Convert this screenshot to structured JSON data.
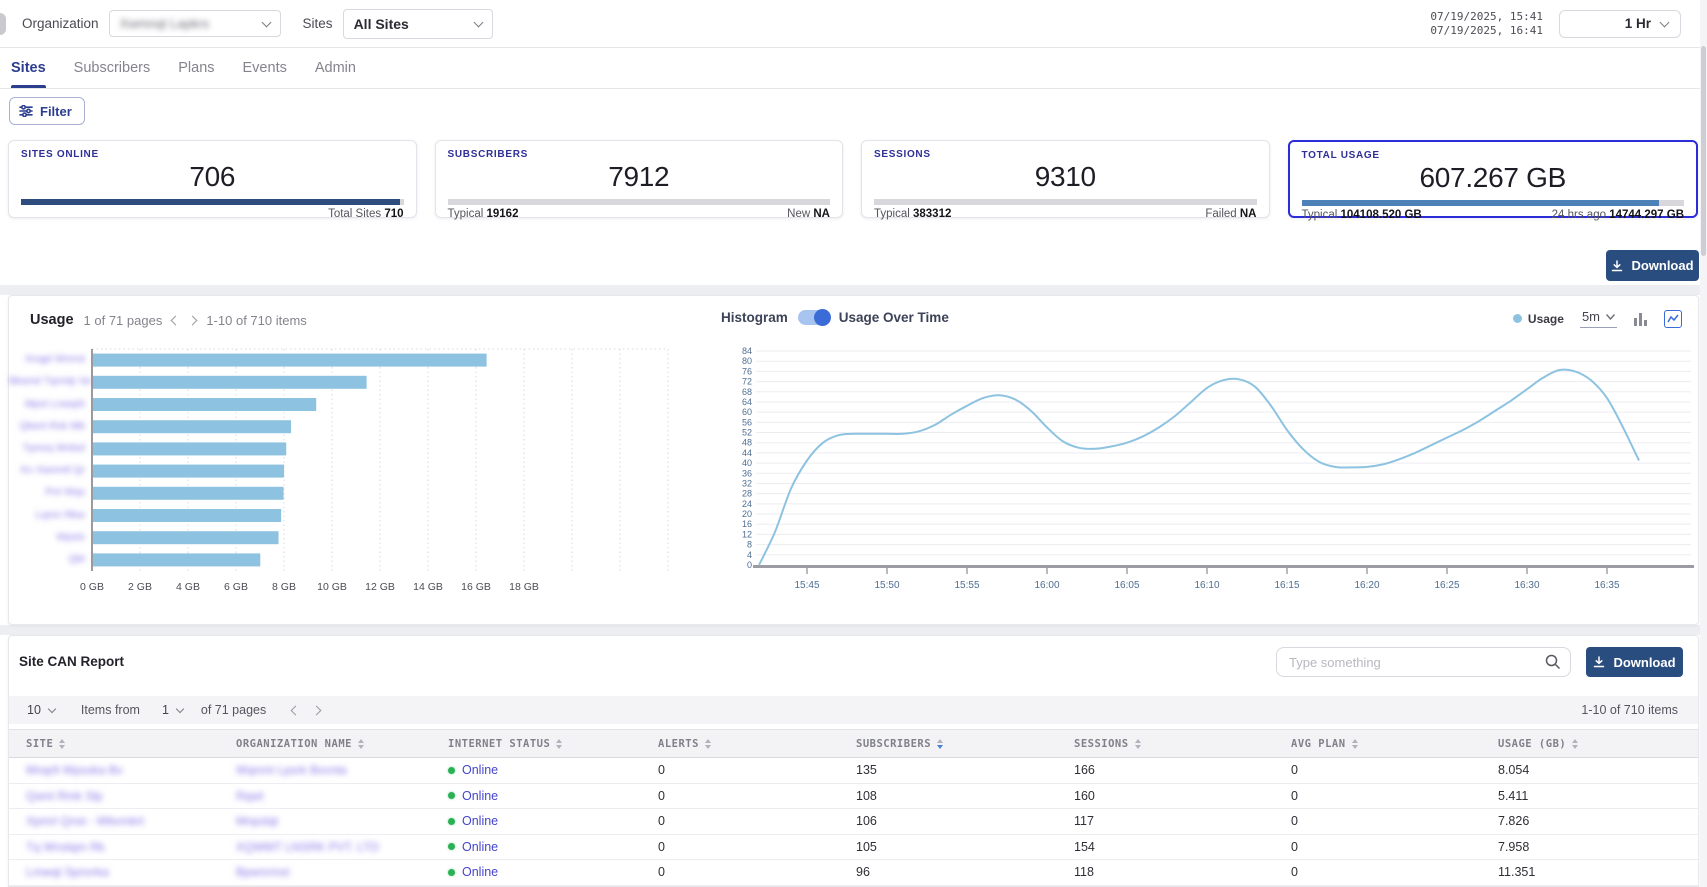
{
  "topbar": {
    "organization_label": "Organization",
    "organization_value_redacted": "Xwmnqt Lapkrs",
    "sites_label": "Sites",
    "sites_value": "All Sites",
    "timestamp_start": "07/19/2025, 15:41",
    "timestamp_end": "07/19/2025, 16:41",
    "time_range": "1 Hr"
  },
  "nav": {
    "tabs": [
      {
        "label": "Sites",
        "active": true
      },
      {
        "label": "Subscribers",
        "active": false
      },
      {
        "label": "Plans",
        "active": false
      },
      {
        "label": "Events",
        "active": false
      },
      {
        "label": "Admin",
        "active": false
      }
    ]
  },
  "toolbar": {
    "filter_label": "Filter",
    "download_label": "Download"
  },
  "stat_cards": [
    {
      "label": "SITES ONLINE",
      "value": "706",
      "footer_left_label": "",
      "footer_left_value": "",
      "footer_right_label": "Total Sites",
      "footer_right_value": "710",
      "bar_pct": 99.2,
      "bar_color": "#2e4d7e",
      "selected": false
    },
    {
      "label": "SUBSCRIBERS",
      "value": "7912",
      "footer_left_label": "Typical",
      "footer_left_value": "19162",
      "footer_right_label": "New",
      "footer_right_value": "NA",
      "bar_pct": 0,
      "bar_color": "#2e4d7e",
      "selected": false
    },
    {
      "label": "SESSIONS",
      "value": "9310",
      "footer_left_label": "Typical",
      "footer_left_value": "383312",
      "footer_right_label": "Failed",
      "footer_right_value": "NA",
      "bar_pct": 0,
      "bar_color": "#2e4d7e",
      "selected": false
    },
    {
      "label": "TOTAL USAGE",
      "value": "607.267 GB",
      "footer_left_label": "Typical",
      "footer_left_value": "104108.520 GB",
      "footer_right_label": "24 hrs ago",
      "footer_right_value": "14744.297 GB",
      "bar_pct": 93.5,
      "bar_color": "#4d82b8",
      "selected": true
    }
  ],
  "usage_panel": {
    "title": "Usage",
    "pages_text": "1 of 71 pages",
    "items_text": "1-10 of 710 items"
  },
  "timeseries_panel": {
    "toggle_left": "Histogram",
    "toggle_right": "Usage Over Time",
    "legend_label": "Usage",
    "interval_value": "5m"
  },
  "report": {
    "title": "Site CAN Report",
    "search_placeholder": "Type something",
    "download_label": "Download",
    "page_size_value": "10",
    "items_from_label": "Items from",
    "page_value": "1",
    "of_pages_label": "of 71 pages",
    "items_range_text": "1-10 of 710 items",
    "columns": [
      {
        "label": "SITE",
        "sorted": ""
      },
      {
        "label": "ORGANIZATION NAME",
        "sorted": ""
      },
      {
        "label": "INTERNET STATUS",
        "sorted": ""
      },
      {
        "label": "ALERTS",
        "sorted": ""
      },
      {
        "label": "SUBSCRIBERS",
        "sorted": "desc"
      },
      {
        "label": "SESSIONS",
        "sorted": ""
      },
      {
        "label": "AVG PLAN",
        "sorted": ""
      },
      {
        "label": "USAGE (GB)",
        "sorted": ""
      }
    ],
    "rows": [
      {
        "site_redacted": "Mnqrlt Wpsxka Bv",
        "org_redacted": "Wqnmt Lpsrk Bxvnta",
        "status": "Online",
        "alerts": "0",
        "subscribers": "135",
        "sessions": "166",
        "avg_plan": "0",
        "usage_gb": "8.054"
      },
      {
        "site_redacted": "Qwnt Rmk Slp",
        "org_redacted": "Rqwt",
        "status": "Online",
        "alerts": "0",
        "subscribers": "108",
        "sessions": "160",
        "avg_plan": "0",
        "usage_gb": "5.411"
      },
      {
        "site_redacted": "Xpmrl Qnst - Wbvmkrt",
        "org_redacted": "Mnpslqt",
        "status": "Online",
        "alerts": "0",
        "subscribers": "106",
        "sessions": "117",
        "avg_plan": "0",
        "usage_gb": "7.826"
      },
      {
        "site_redacted": "Tq Wnslqm Rk",
        "org_redacted": "XQWMT LNSRK PVT. LTD",
        "status": "Online",
        "alerts": "0",
        "subscribers": "105",
        "sessions": "154",
        "avg_plan": "0",
        "usage_gb": "7.958"
      },
      {
        "site_redacted": "Lmwqt Spnvrka",
        "org_redacted": "Bpwnrmst",
        "status": "Online",
        "alerts": "0",
        "subscribers": "96",
        "sessions": "118",
        "avg_plan": "0",
        "usage_gb": "11.351"
      }
    ]
  },
  "chart_data": [
    {
      "type": "bar",
      "orientation": "horizontal",
      "title": "Usage",
      "categories_redacted": [
        "Xnqpl Wmrst",
        "Bkwnd Tqrmlp Va",
        "Mpst Lnwqrb",
        "Qlwnt Rsk Mb",
        "Tpmrq Wnbsl",
        "Kv Xwnmtl Qr",
        "Pnt Wqs",
        "Lqmn Rkw",
        "Wpslx",
        "Qkt"
      ],
      "values": [
        16.4,
        11.4,
        9.3,
        8.25,
        8.05,
        7.96,
        7.94,
        7.84,
        7.73,
        6.97
      ],
      "x_ticks": [
        "0 GB",
        "2 GB",
        "4 GB",
        "6 GB",
        "8 GB",
        "10 GB",
        "12 GB",
        "14 GB",
        "16 GB",
        "18 GB"
      ],
      "xlim": [
        0,
        18
      ],
      "xlabel": "",
      "ylabel": "",
      "bar_color": "#8dc3e1",
      "grid": "vertical-dotted"
    },
    {
      "type": "line",
      "title": "Usage Over Time",
      "x_tick_labels": [
        "15:45",
        "15:50",
        "15:55",
        "16:00",
        "16:05",
        "16:10",
        "16:15",
        "16:20",
        "16:25",
        "16:30",
        "16:35"
      ],
      "ylim": [
        0,
        84
      ],
      "y_tick_step": 4,
      "grid": "horizontal",
      "legend_position": "top-right",
      "series": [
        {
          "name": "Usage",
          "x": [
            "15:42",
            "15:43",
            "15:44",
            "15:45",
            "15:46",
            "15:47",
            "15:48",
            "15:49",
            "15:50",
            "15:51",
            "15:52",
            "15:53",
            "15:54",
            "15:55",
            "15:56",
            "15:57",
            "15:58",
            "15:59",
            "16:00",
            "16:01",
            "16:02",
            "16:03",
            "16:04",
            "16:05",
            "16:06",
            "16:07",
            "16:08",
            "16:09",
            "16:10",
            "16:11",
            "16:12",
            "16:13",
            "16:14",
            "16:15",
            "16:16",
            "16:17",
            "16:18",
            "16:19",
            "16:20",
            "16:21",
            "16:22",
            "16:23",
            "16:24",
            "16:25",
            "16:26",
            "16:27",
            "16:28",
            "16:29",
            "16:30",
            "16:31",
            "16:32",
            "16:33",
            "16:34",
            "16:35",
            "16:36",
            "16:37"
          ],
          "values": [
            0,
            13,
            30,
            41,
            48,
            51,
            51.5,
            51.5,
            51.5,
            51.5,
            52.5,
            55,
            59,
            62.5,
            65.5,
            66.6,
            65,
            60.5,
            54,
            48.5,
            46,
            45.6,
            46.5,
            48,
            50.5,
            54,
            58.5,
            64,
            69.5,
            72.5,
            72.9,
            70,
            62.5,
            53,
            45.5,
            40.5,
            38.5,
            38.3,
            38.5,
            39.5,
            41.5,
            44,
            47,
            50,
            53,
            56.5,
            60.5,
            64.5,
            69,
            73.5,
            76.5,
            76,
            72.5,
            65.5,
            54,
            41
          ]
        }
      ],
      "line_color": "#8dc3e1"
    }
  ],
  "colors": {
    "accent_navy": "#2a4d80",
    "selected_card_border": "#2c2cd9",
    "indigo_label": "#2f2f96",
    "chart_blue": "#8dc3e1",
    "toggle_blue": "#3b6bd6",
    "online_green": "#2ab155",
    "link_blue": "#4545cc",
    "active_tab": "#2c3e8f"
  }
}
